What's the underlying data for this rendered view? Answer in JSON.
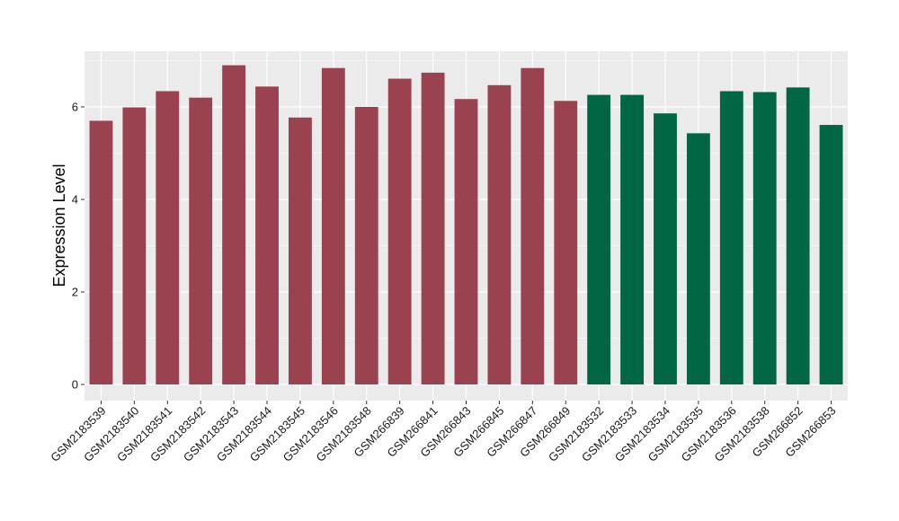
{
  "chart_data": {
    "type": "bar",
    "title": "",
    "xlabel": "",
    "ylabel": "Expression Level",
    "ylim": [
      0,
      7.25
    ],
    "yticks": [
      0,
      2,
      4,
      6
    ],
    "grid": true,
    "legend": "none",
    "colors": {
      "group1": "#9B4250",
      "group2": "#006644",
      "panel": "#EBEBEB",
      "grid": "#FFFFFF"
    },
    "categories": [
      "GSM2183539",
      "GSM2183540",
      "GSM2183541",
      "GSM2183542",
      "GSM2183543",
      "GSM2183544",
      "GSM2183545",
      "GSM2183546",
      "GSM2183548",
      "GSM266839",
      "GSM266841",
      "GSM266843",
      "GSM266845",
      "GSM266847",
      "GSM266849",
      "GSM2183532",
      "GSM2183533",
      "GSM2183534",
      "GSM2183535",
      "GSM2183536",
      "GSM2183538",
      "GSM266852",
      "GSM266853"
    ],
    "values": [
      5.7,
      5.99,
      6.34,
      6.2,
      6.9,
      6.44,
      5.77,
      6.84,
      6.0,
      6.61,
      6.74,
      6.17,
      6.47,
      6.84,
      6.13,
      6.26,
      6.26,
      5.86,
      5.43,
      6.34,
      6.32,
      6.42,
      5.61
    ],
    "groups": [
      1,
      1,
      1,
      1,
      1,
      1,
      1,
      1,
      1,
      1,
      1,
      1,
      1,
      1,
      1,
      2,
      2,
      2,
      2,
      2,
      2,
      2,
      2
    ]
  }
}
